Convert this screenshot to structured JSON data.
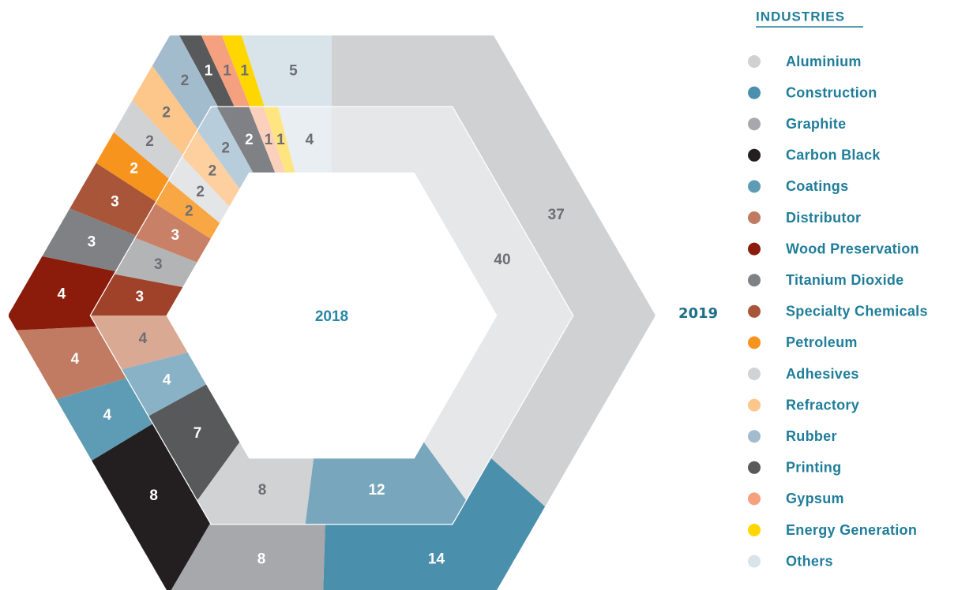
{
  "chart_data": {
    "type": "hexagon-donut",
    "legend_title": "INDUSTRIES",
    "categories": [
      "Aluminium",
      "Construction",
      "Graphite",
      "Carbon Black",
      "Coatings",
      "Distributor",
      "Wood Preservation",
      "Titanium Dioxide",
      "Specialty Chemicals",
      "Petroleum",
      "Adhesives",
      "Refractory",
      "Rubber",
      "Printing",
      "Gypsum",
      "Energy Generation",
      "Others"
    ],
    "series": [
      {
        "name": "2019",
        "ring": "outer",
        "values": [
          37,
          14,
          8,
          8,
          4,
          4,
          4,
          3,
          3,
          2,
          2,
          2,
          2,
          1,
          1,
          1,
          5
        ],
        "colors": [
          "#d0d1d3",
          "#4a90ad",
          "#a7a8ab",
          "#231f20",
          "#5e9bb5",
          "#c07b62",
          "#8b1c0c",
          "#808184",
          "#a8553a",
          "#f7941d",
          "#d1d2d4",
          "#fdc68a",
          "#a3bccd",
          "#58595b",
          "#f5a07e",
          "#ffd700",
          "#d9e3ea"
        ]
      },
      {
        "name": "2018",
        "ring": "inner",
        "values": [
          40,
          12,
          8,
          7,
          4,
          4,
          3,
          3,
          3,
          2,
          2,
          2,
          2,
          2,
          1,
          1,
          4
        ],
        "colors": [
          "#e6e7e8",
          "#78a6bd",
          "#d1d2d3",
          "#58595b",
          "#89b2c6",
          "#d9a994",
          "#a0412a",
          "#b3b4b6",
          "#c88066",
          "#f9a745",
          "#e4e5e6",
          "#fed0a0",
          "#b8cddb",
          "#808184",
          "#fbd0bd",
          "#ffe580",
          "#e8eef2"
        ]
      }
    ]
  }
}
